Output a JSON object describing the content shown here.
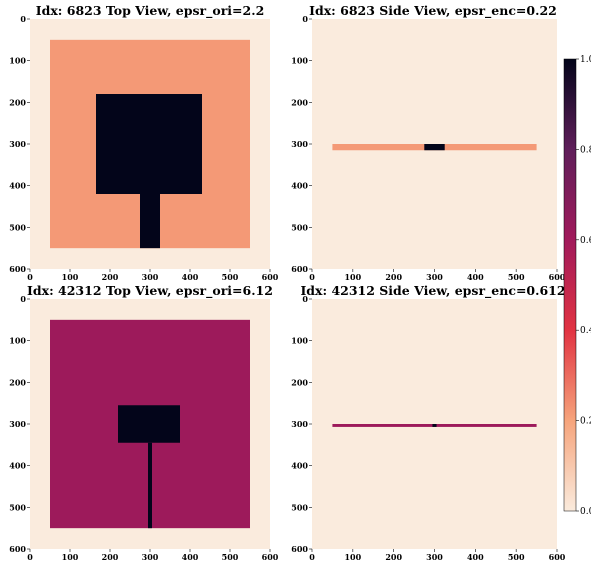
{
  "chart_data": {
    "type": "heatmap",
    "colormap": "rocket_r",
    "colorbar": {
      "range": [
        0,
        1
      ],
      "ticks": [
        "0.0",
        "0.2",
        "0.4",
        "0.6",
        "0.8",
        "1.0"
      ],
      "position": "right"
    },
    "panels": [
      {
        "title": "Idx: 6823 Top View, epsr_ori=2.2",
        "xlim": [
          0,
          600
        ],
        "ylim": [
          600,
          0
        ],
        "xticks": [
          "0",
          "100",
          "200",
          "300",
          "400",
          "500",
          "600"
        ],
        "yticks": [
          "0",
          "100",
          "200",
          "300",
          "400",
          "500",
          "600"
        ],
        "background": 0.0,
        "regions": [
          {
            "x": [
              50,
              550
            ],
            "y": [
              50,
              550
            ],
            "value": 0.22
          },
          {
            "x": [
              165,
              430
            ],
            "y": [
              180,
              420
            ],
            "value": 1.0
          },
          {
            "x": [
              275,
              325
            ],
            "y": [
              420,
              550
            ],
            "value": 1.0
          }
        ]
      },
      {
        "title": "Idx: 6823 Side View, epsr_enc=0.22",
        "xlim": [
          0,
          600
        ],
        "ylim": [
          600,
          0
        ],
        "xticks": [
          "0",
          "100",
          "200",
          "300",
          "400",
          "500",
          "600"
        ],
        "yticks": [
          "0",
          "100",
          "200",
          "300",
          "400",
          "500",
          "600"
        ],
        "background": 0.0,
        "regions": [
          {
            "x": [
              50,
              550
            ],
            "y": [
              300,
              315
            ],
            "value": 0.22
          },
          {
            "x": [
              275,
              325
            ],
            "y": [
              300,
              315
            ],
            "value": 1.0
          }
        ]
      },
      {
        "title": "Idx: 42312 Top View, epsr_ori=6.12",
        "xlim": [
          0,
          600
        ],
        "ylim": [
          600,
          0
        ],
        "xticks": [
          "0",
          "100",
          "200",
          "300",
          "400",
          "500",
          "600"
        ],
        "yticks": [
          "0",
          "100",
          "200",
          "300",
          "400",
          "500",
          "600"
        ],
        "background": 0.0,
        "regions": [
          {
            "x": [
              50,
              550
            ],
            "y": [
              50,
              550
            ],
            "value": 0.612
          },
          {
            "x": [
              220,
              375
            ],
            "y": [
              255,
              345
            ],
            "value": 1.0
          },
          {
            "x": [
              295,
              305
            ],
            "y": [
              345,
              550
            ],
            "value": 1.0
          }
        ]
      },
      {
        "title": "Idx: 42312 Side View, epsr_enc=0.612",
        "xlim": [
          0,
          600
        ],
        "ylim": [
          600,
          0
        ],
        "xticks": [
          "0",
          "100",
          "200",
          "300",
          "400",
          "500",
          "600"
        ],
        "yticks": [
          "0",
          "100",
          "200",
          "300",
          "400",
          "500",
          "600"
        ],
        "background": 0.0,
        "regions": [
          {
            "x": [
              50,
              550
            ],
            "y": [
              300,
              307
            ],
            "value": 0.612
          },
          {
            "x": [
              295,
              305
            ],
            "y": [
              300,
              307
            ],
            "value": 1.0
          }
        ]
      }
    ]
  }
}
